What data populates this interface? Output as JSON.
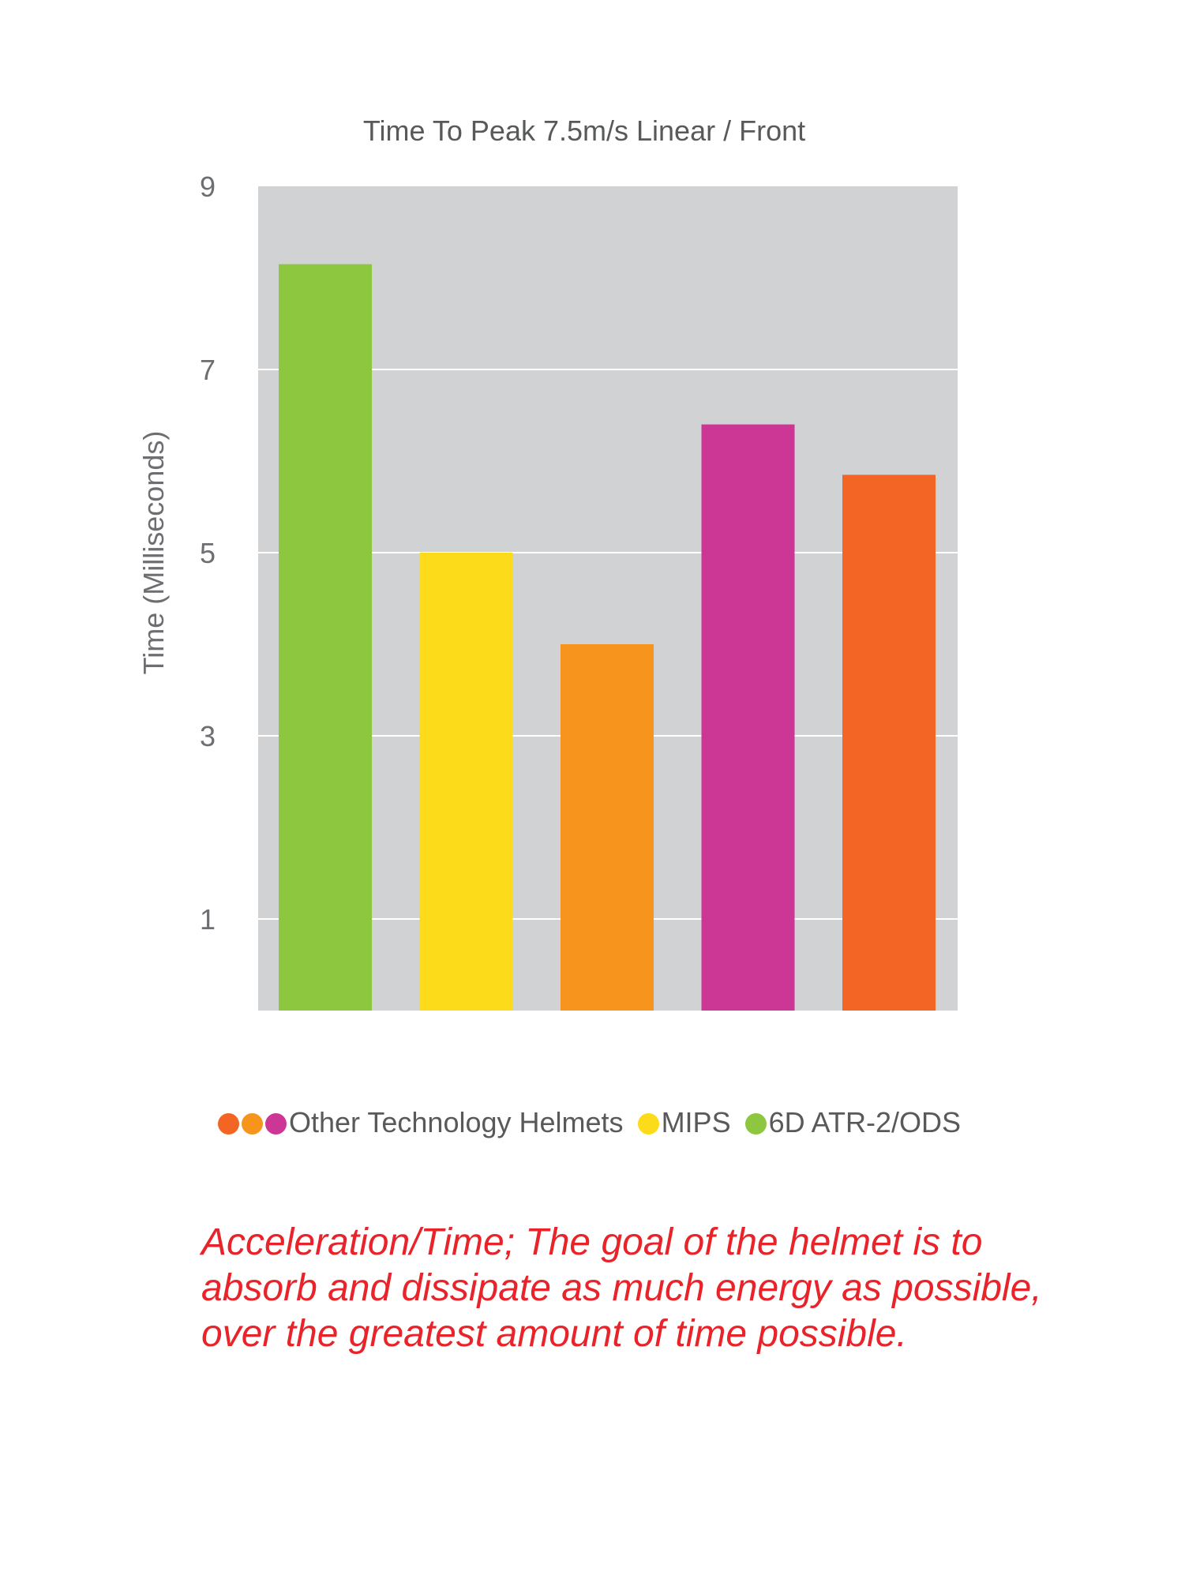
{
  "chart_data": {
    "type": "bar",
    "title": "Time To Peak 7.5m/s Linear / Front",
    "ylabel": "Time (Milliseconds)",
    "xlabel": "",
    "ylim": [
      0,
      9
    ],
    "yticks": [
      1,
      3,
      5,
      7,
      9
    ],
    "ytick_labels": [
      "1",
      "3",
      "5",
      "7",
      "9"
    ],
    "grid": true,
    "background_color": "#d1d2d4",
    "values": [
      8.15,
      5.0,
      4.0,
      6.4,
      5.85
    ],
    "colors": [
      "#8dc63f",
      "#fcdc1a",
      "#f7941d",
      "#cc3694",
      "#f26524"
    ],
    "legend": {
      "placement": "bottom",
      "entries": [
        {
          "label": "Other Technology Helmets",
          "colors": [
            "#f26524",
            "#f7941d",
            "#cc3694"
          ]
        },
        {
          "label": "MIPS",
          "colors": [
            "#fcdc1a"
          ]
        },
        {
          "label": "6D ATR-2/ODS",
          "colors": [
            "#8dc63f"
          ]
        }
      ]
    }
  },
  "caption": {
    "lines": [
      "Acceleration/Time; The goal of the helmet is to",
      "absorb and dissipate as much energy as possible,",
      "over the greatest amount of time possible."
    ],
    "color": "#e8232a"
  }
}
